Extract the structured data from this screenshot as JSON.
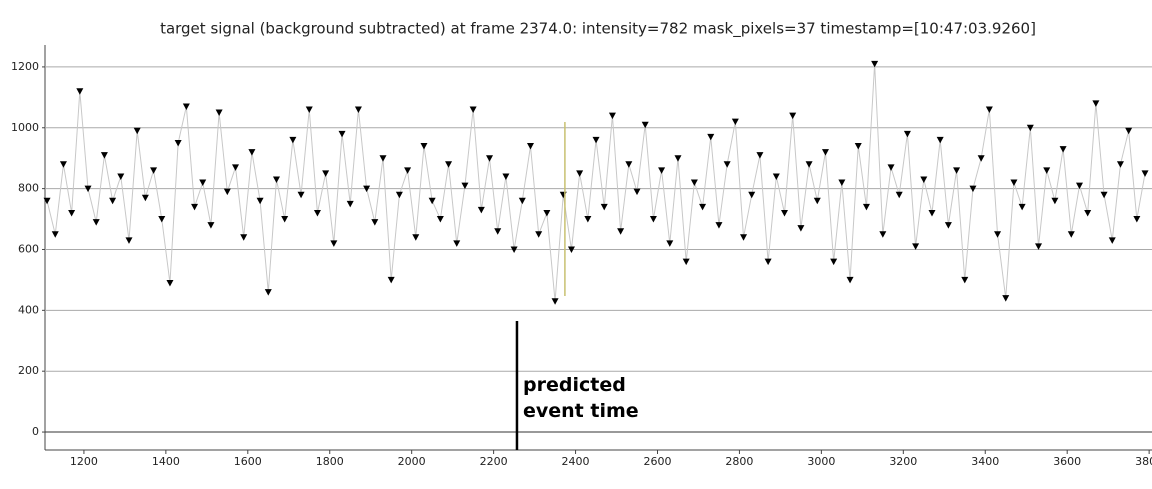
{
  "chart_data": {
    "type": "scatter",
    "title": "target signal (background subtracted) at frame 2374.0: intensity=782 mask_pixels=37 timestamp=[10:47:03.9260]",
    "x": [
      1110,
      1130,
      1150,
      1170,
      1190,
      1210,
      1230,
      1250,
      1270,
      1290,
      1310,
      1330,
      1350,
      1370,
      1390,
      1410,
      1430,
      1450,
      1470,
      1490,
      1510,
      1530,
      1550,
      1570,
      1590,
      1610,
      1630,
      1650,
      1670,
      1690,
      1710,
      1730,
      1750,
      1770,
      1790,
      1810,
      1830,
      1850,
      1870,
      1890,
      1910,
      1930,
      1950,
      1970,
      1990,
      2010,
      2030,
      2050,
      2070,
      2090,
      2110,
      2130,
      2150,
      2170,
      2190,
      2210,
      2230,
      2250,
      2270,
      2290,
      2310,
      2330,
      2350,
      2370,
      2390,
      2410,
      2430,
      2450,
      2470,
      2490,
      2510,
      2530,
      2550,
      2570,
      2590,
      2610,
      2630,
      2650,
      2670,
      2690,
      2710,
      2730,
      2750,
      2770,
      2790,
      2810,
      2830,
      2850,
      2870,
      2890,
      2910,
      2930,
      2950,
      2970,
      2990,
      3010,
      3030,
      3050,
      3070,
      3090,
      3110,
      3130,
      3150,
      3170,
      3190,
      3210,
      3230,
      3250,
      3270,
      3290,
      3310,
      3330,
      3350,
      3370,
      3390,
      3410,
      3430,
      3450,
      3470,
      3490,
      3510,
      3530,
      3550,
      3570,
      3590,
      3610,
      3630,
      3650,
      3670,
      3690,
      3710,
      3730,
      3750,
      3770,
      3790
    ],
    "series": [
      {
        "color": "#000000",
        "line_color": "#c8c8c8",
        "values": [
          760,
          650,
          880,
          720,
          1120,
          800,
          690,
          910,
          760,
          840,
          630,
          990,
          770,
          860,
          700,
          490,
          950,
          1070,
          740,
          820,
          680,
          1050,
          790,
          870,
          640,
          920,
          760,
          460,
          830,
          700,
          960,
          780,
          1060,
          720,
          850,
          620,
          980,
          750,
          1060,
          800,
          690,
          900,
          500,
          780,
          860,
          640,
          940,
          760,
          700,
          880,
          620,
          810,
          1060,
          730,
          900,
          660,
          840,
          600,
          760,
          940,
          650,
          720,
          430,
          780,
          600,
          850,
          700,
          960,
          740,
          1040,
          660,
          880,
          790,
          1010,
          700,
          860,
          620,
          900,
          560,
          820,
          740,
          970,
          680,
          880,
          1020,
          640,
          780,
          910,
          560,
          840,
          720,
          1040,
          670,
          880,
          760,
          920,
          560,
          820,
          500,
          940,
          740,
          1210,
          650,
          870,
          780,
          980,
          610,
          830,
          720,
          960,
          680,
          860,
          500,
          800,
          900,
          1060,
          650,
          440,
          820,
          740,
          1000,
          610,
          860,
          760,
          930,
          650,
          810,
          720,
          1080,
          780,
          630,
          880,
          990,
          700,
          850
        ]
      }
    ],
    "xlim": [
      1105,
      3807
    ],
    "ylim": [
      -59,
      1272
    ],
    "xticks": [
      1200,
      1400,
      1600,
      1800,
      2000,
      2200,
      2400,
      2600,
      2800,
      3000,
      3200,
      3400,
      3600,
      3800
    ],
    "yticks": [
      0,
      200,
      400,
      600,
      800,
      1000,
      1200
    ],
    "grid": true,
    "current_frame_x": 2374,
    "annotation": {
      "text": "predicted event time",
      "x": 2257
    }
  }
}
